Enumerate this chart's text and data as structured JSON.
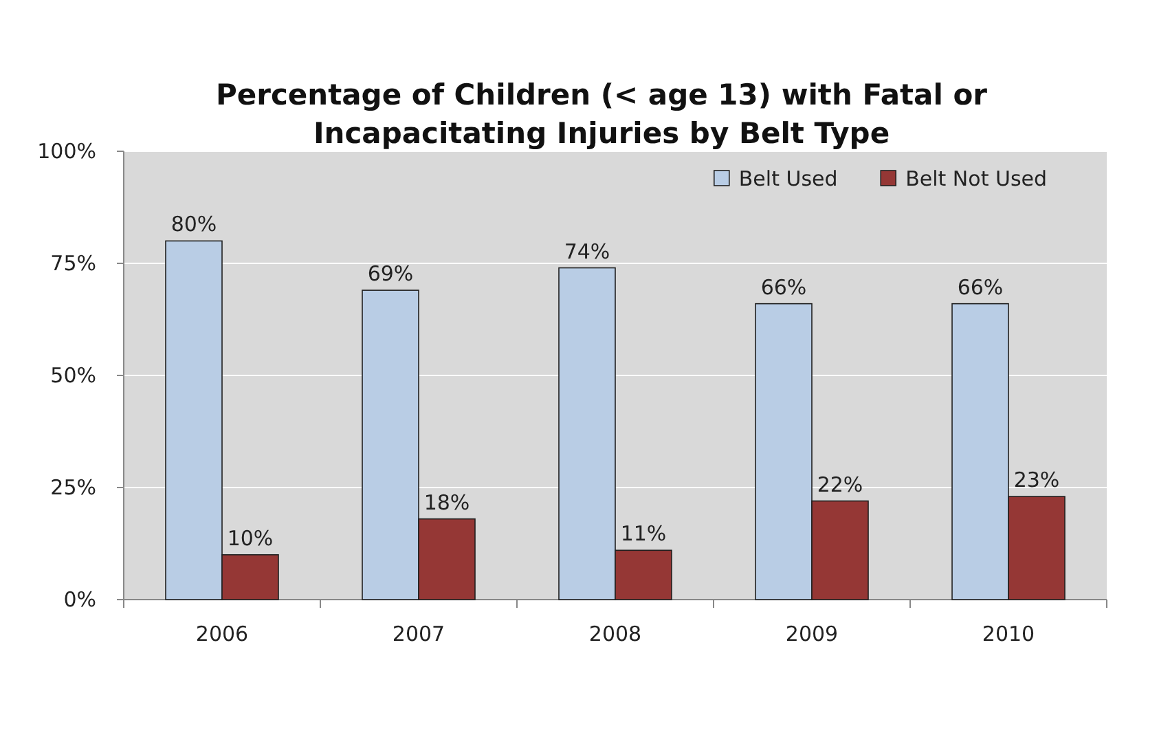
{
  "chart_data": {
    "type": "bar",
    "title": "Percentage of Children (< age 13) with Fatal or Incapacitating Injuries by Belt Type",
    "categories": [
      "2006",
      "2007",
      "2008",
      "2009",
      "2010"
    ],
    "series": [
      {
        "name": "Belt Used",
        "color": "#b9cde5",
        "values": [
          80,
          69,
          74,
          66,
          66
        ],
        "value_labels": [
          "80%",
          "69%",
          "74%",
          "66%",
          "66%"
        ]
      },
      {
        "name": "Belt Not Used",
        "color": "#953735",
        "values": [
          10,
          18,
          11,
          22,
          23
        ],
        "value_labels": [
          "10%",
          "18%",
          "11%",
          "22%",
          "23%"
        ]
      }
    ],
    "ylim": [
      0,
      100
    ],
    "yticks": [
      {
        "value": 0,
        "label": "0%"
      },
      {
        "value": 25,
        "label": "25%"
      },
      {
        "value": 50,
        "label": "50%"
      },
      {
        "value": 75,
        "label": "75%"
      },
      {
        "value": 100,
        "label": "100%"
      }
    ],
    "grid": "y",
    "legend": "top right"
  }
}
